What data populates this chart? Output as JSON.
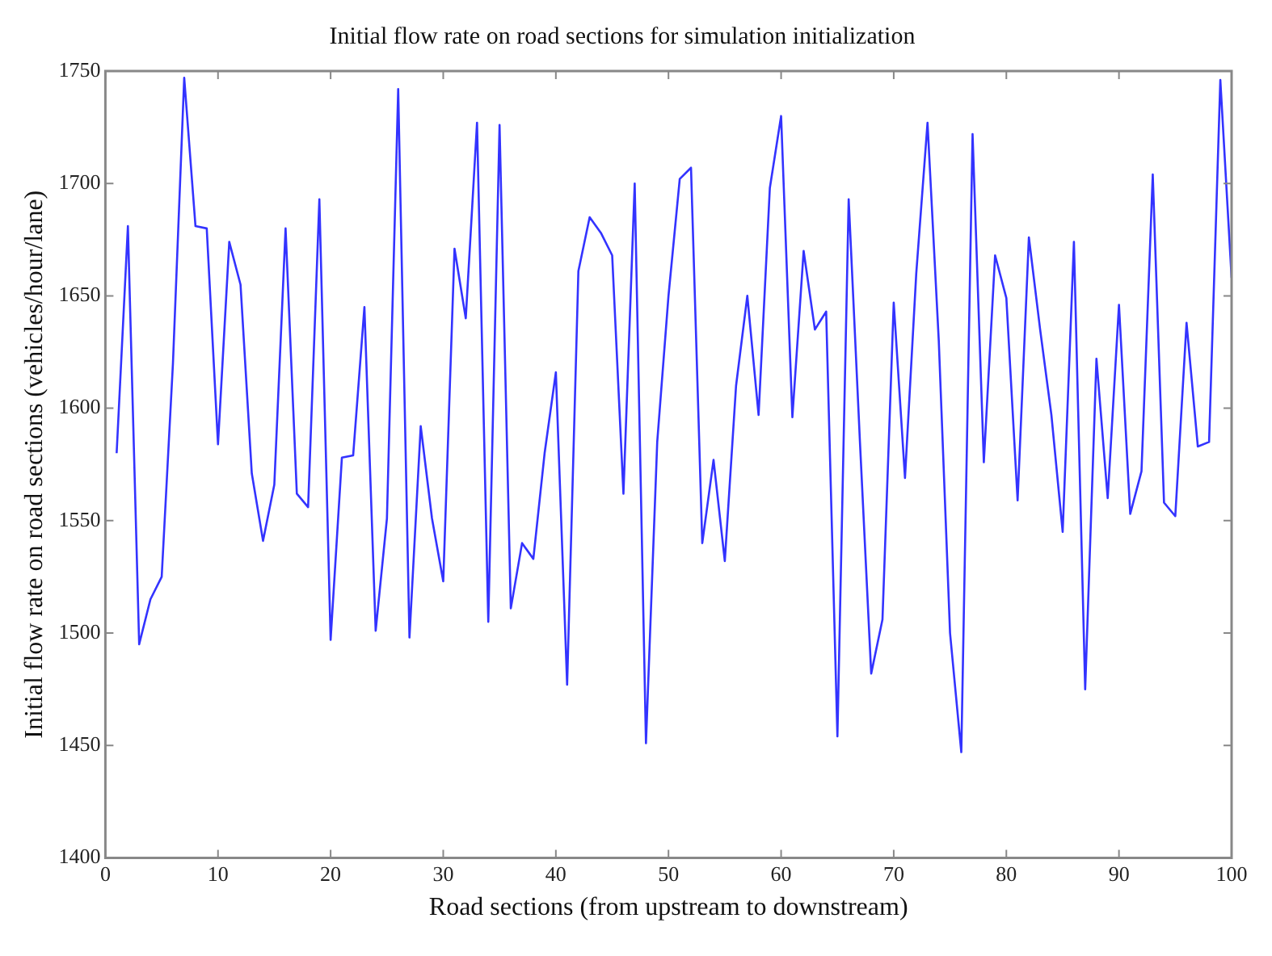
{
  "chart_data": {
    "type": "line",
    "title": "Initial flow rate on road sections for simulation initialization",
    "xlabel": "Road sections (from upstream to downstream)",
    "ylabel": "Initial flow rate on road sections (vehicles/hour/lane)",
    "x": [
      1,
      2,
      3,
      4,
      5,
      6,
      7,
      8,
      9,
      10,
      11,
      12,
      13,
      14,
      15,
      16,
      17,
      18,
      19,
      20,
      21,
      22,
      23,
      24,
      25,
      26,
      27,
      28,
      29,
      30,
      31,
      32,
      33,
      34,
      35,
      36,
      37,
      38,
      39,
      40,
      41,
      42,
      43,
      44,
      45,
      46,
      47,
      48,
      49,
      50,
      51,
      52,
      53,
      54,
      55,
      56,
      57,
      58,
      59,
      60,
      61,
      62,
      63,
      64,
      65,
      66,
      67,
      68,
      69,
      70,
      71,
      72,
      73,
      74,
      75,
      76,
      77,
      78,
      79,
      80,
      81,
      82,
      83,
      84,
      85,
      86,
      87,
      88,
      89,
      90,
      91,
      92,
      93,
      94,
      95,
      96,
      97,
      98,
      99,
      100
    ],
    "series": [
      {
        "color": "#3333ff",
        "values": [
          1580,
          1681,
          1495,
          1515,
          1525,
          1620,
          1747,
          1681,
          1680,
          1584,
          1674,
          1655,
          1571,
          1541,
          1566,
          1680,
          1562,
          1556,
          1693,
          1497,
          1578,
          1579,
          1645,
          1501,
          1551,
          1742,
          1498,
          1592,
          1551,
          1523,
          1671,
          1640,
          1727,
          1505,
          1726,
          1511,
          1540,
          1533,
          1580,
          1616,
          1477,
          1661,
          1685,
          1678,
          1668,
          1562,
          1700,
          1451,
          1585,
          1650,
          1702,
          1707,
          1540,
          1577,
          1532,
          1610,
          1650,
          1597,
          1698,
          1730,
          1596,
          1670,
          1635,
          1643,
          1454,
          1693,
          1585,
          1482,
          1506,
          1647,
          1569,
          1660,
          1727,
          1630,
          1500,
          1447,
          1722,
          1576,
          1668,
          1649,
          1559,
          1676,
          1635,
          1597,
          1545,
          1674,
          1475,
          1622,
          1560,
          1646,
          1553,
          1572,
          1704,
          1558,
          1552,
          1638,
          1583,
          1585,
          1746,
          1658
        ]
      }
    ],
    "xlim": [
      0,
      100
    ],
    "xticks": [
      0,
      10,
      20,
      30,
      40,
      50,
      60,
      70,
      80,
      90,
      100
    ],
    "ylim": [
      1400,
      1750
    ],
    "yticks": [
      1400,
      1450,
      1500,
      1550,
      1600,
      1650,
      1700,
      1750
    ],
    "grid": false,
    "legend": false,
    "marker": "none",
    "line_style": "solid"
  }
}
